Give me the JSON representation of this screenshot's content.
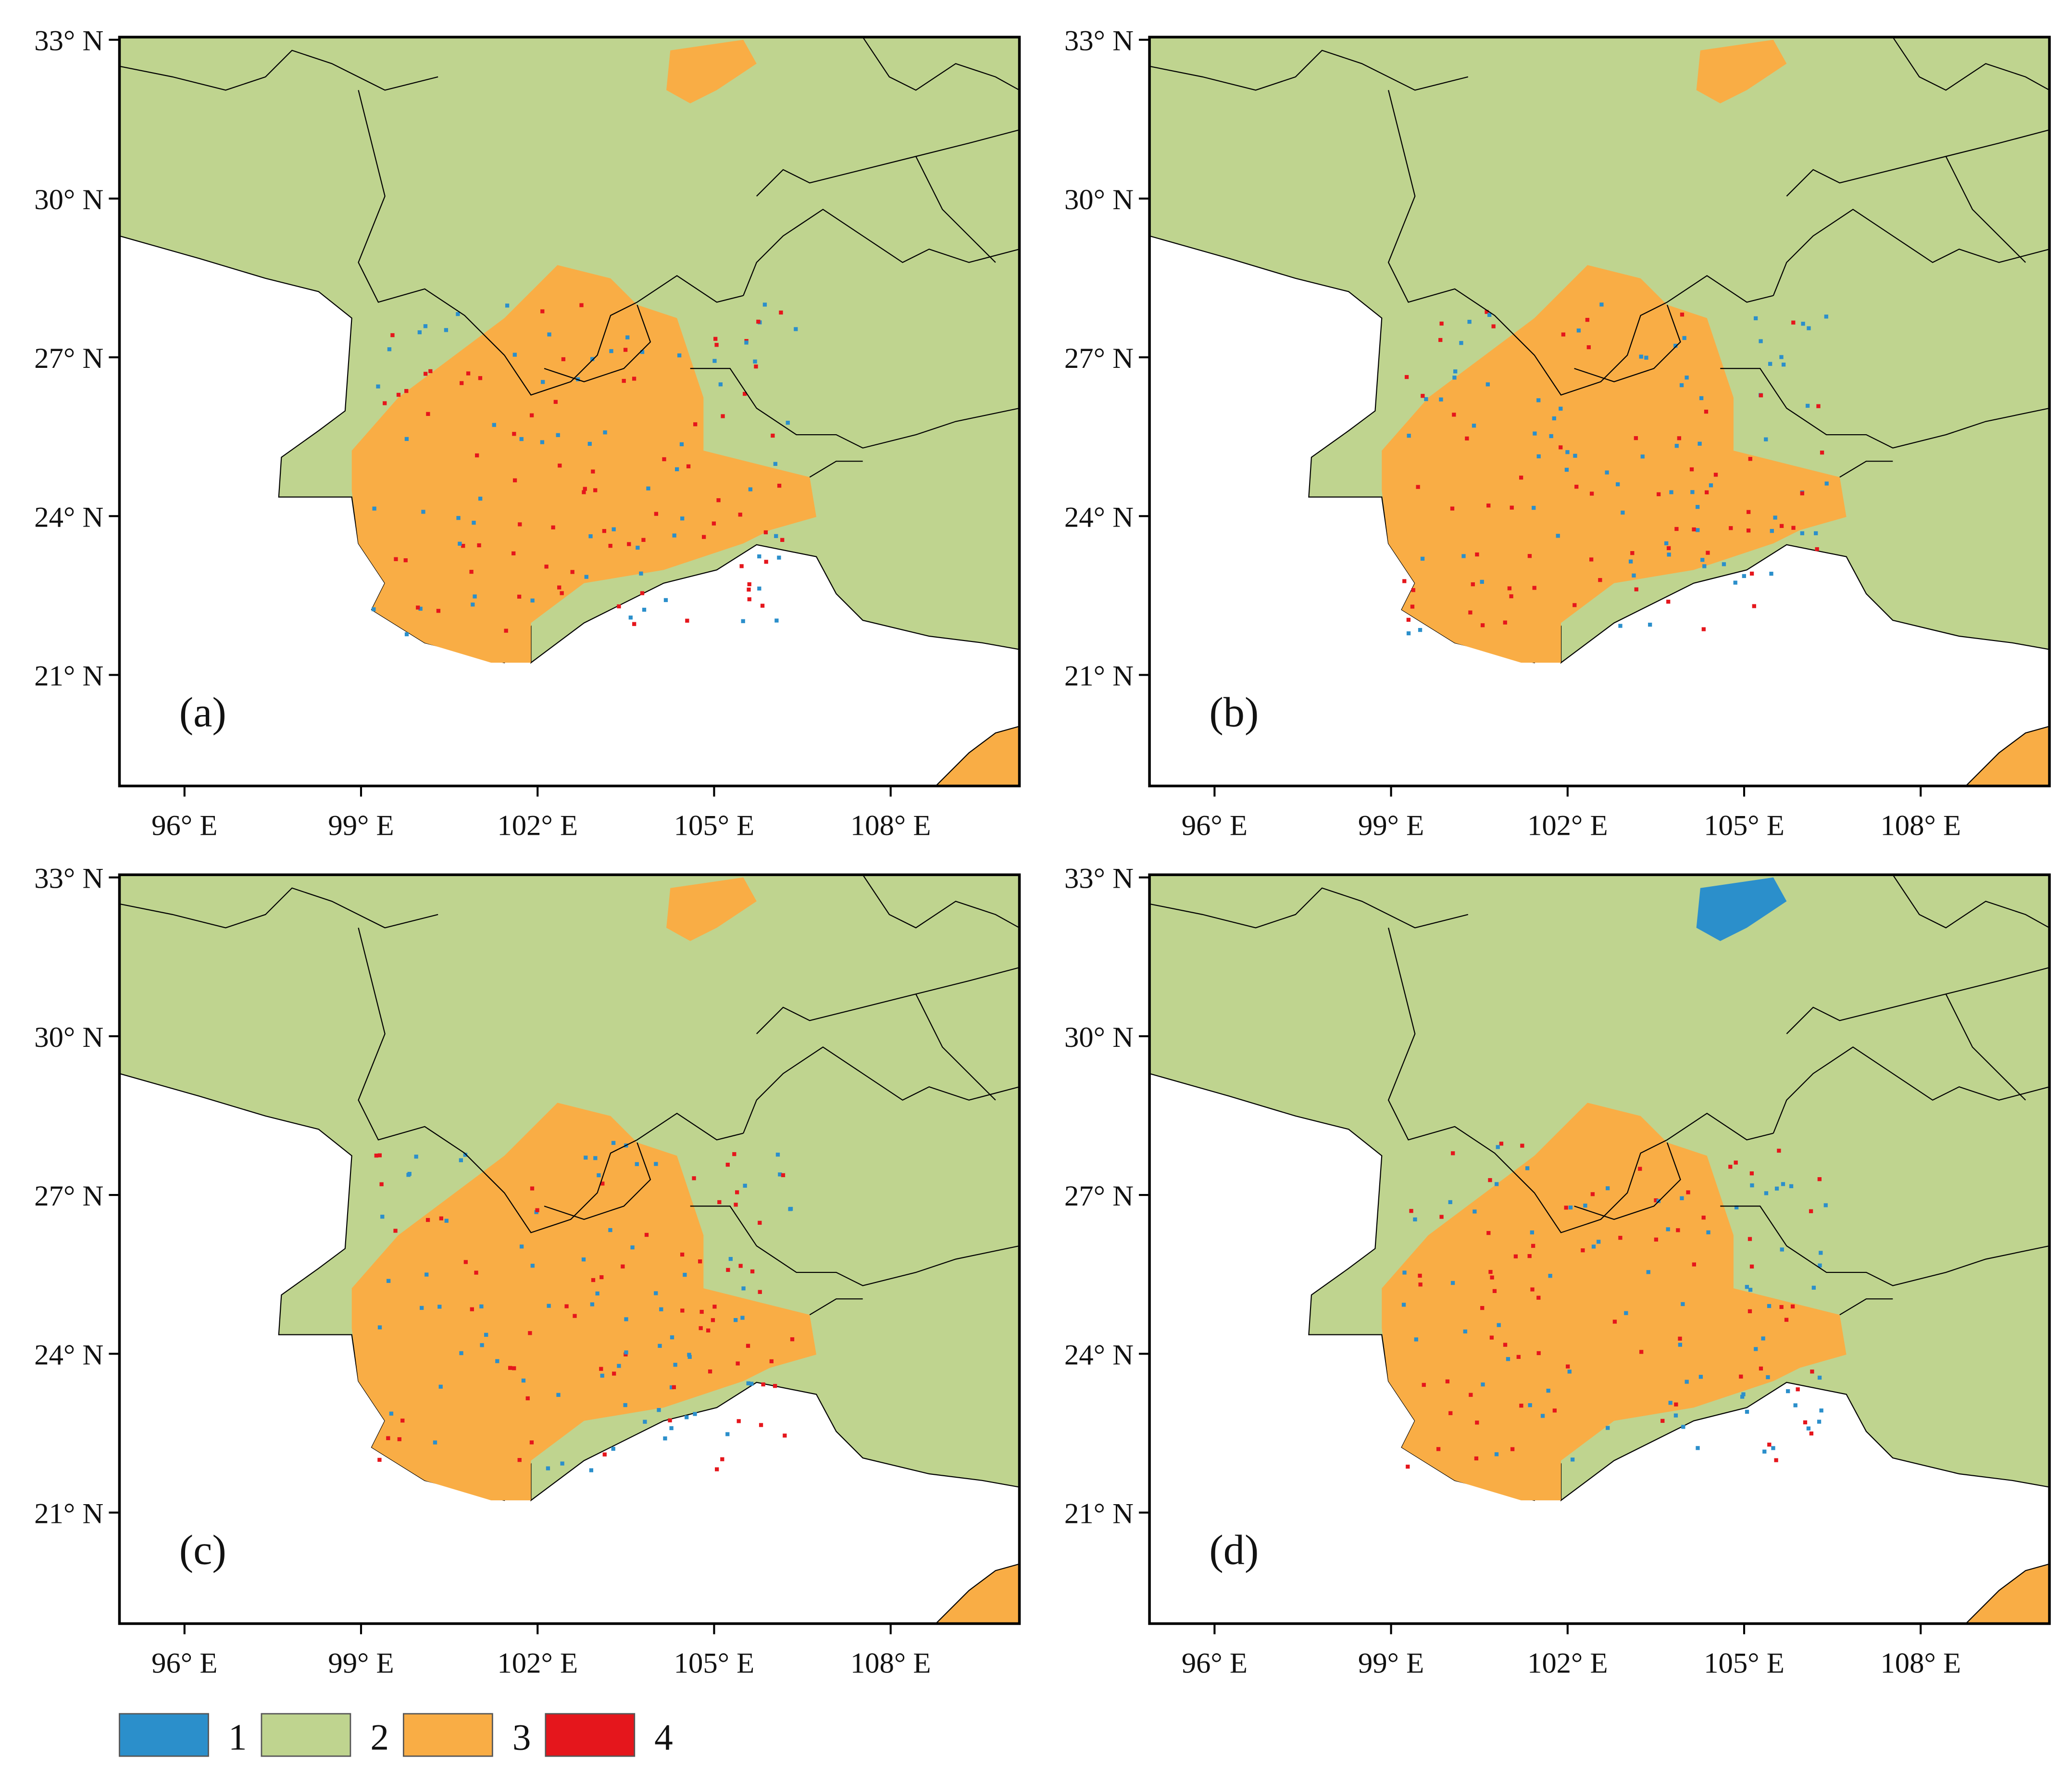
{
  "panels": [
    {
      "label": "(a)"
    },
    {
      "label": "(b)"
    },
    {
      "label": "(c)"
    },
    {
      "label": "(d)"
    }
  ],
  "x_ticks": [
    "96° E",
    "99° E",
    "102° E",
    "105° E",
    "108° E"
  ],
  "y_ticks": [
    "33° N",
    "30° N",
    "27° N",
    "24° N",
    "21° N"
  ],
  "legend": [
    {
      "label": "1",
      "color": "#2b8fcb"
    },
    {
      "label": "2",
      "color": "#bfd48f"
    },
    {
      "label": "3",
      "color": "#f9ad45"
    },
    {
      "label": "4",
      "color": "#e5161c"
    }
  ]
}
